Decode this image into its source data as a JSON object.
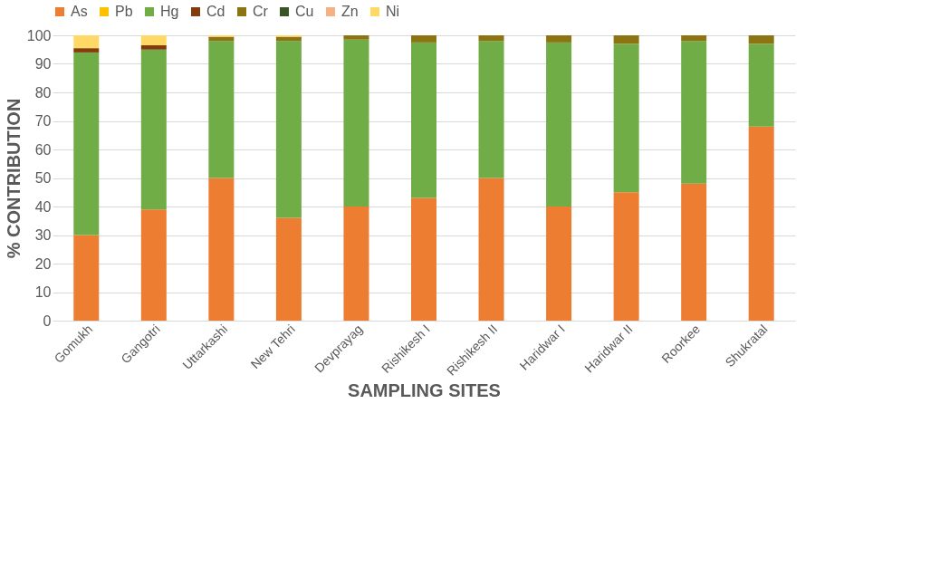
{
  "chart_data": {
    "type": "bar",
    "stacked": true,
    "xlabel": "SAMPLING SITES",
    "ylabel": "% CONTRIBUTION",
    "categories": [
      "Gomukh",
      "Gangotri",
      "Uttarkashi",
      "New Tehri",
      "Devprayag",
      "Rishikesh I",
      "Rishikesh II",
      "Haridwar I",
      "Haridwar II",
      "Roorkee",
      "Shukratal"
    ],
    "series": [
      {
        "name": "As",
        "color": "#ed7d31",
        "values": [
          30,
          39,
          50,
          36,
          40,
          43,
          50,
          40,
          45,
          48,
          68
        ]
      },
      {
        "name": "Pb",
        "color": "#ffc000",
        "values": [
          0,
          0,
          0,
          0,
          0,
          0,
          0,
          0,
          0,
          0,
          0
        ]
      },
      {
        "name": "Hg",
        "color": "#70ad47",
        "values": [
          64,
          56,
          48,
          62,
          58.5,
          54.5,
          48,
          57.5,
          52,
          50,
          29
        ]
      },
      {
        "name": "Cd",
        "color": "#843c0c",
        "values": [
          1.5,
          1.5,
          0,
          0,
          0,
          0,
          0,
          0,
          0,
          0,
          0
        ]
      },
      {
        "name": "Cr",
        "color": "#8c7412",
        "values": [
          0,
          0,
          1.5,
          1.5,
          1.5,
          2.5,
          2,
          2.5,
          3,
          2,
          3
        ]
      },
      {
        "name": "Cu",
        "color": "#375623",
        "values": [
          0,
          0,
          0,
          0,
          0,
          0,
          0,
          0,
          0,
          0,
          0
        ]
      },
      {
        "name": "Zn",
        "color": "#f4b183",
        "values": [
          0,
          0,
          0,
          0,
          0,
          0,
          0,
          0,
          0,
          0,
          0
        ]
      },
      {
        "name": "Ni",
        "color": "#ffd966",
        "values": [
          4.5,
          3.5,
          0.5,
          0.5,
          0,
          0,
          0,
          0,
          0,
          0,
          0
        ]
      }
    ],
    "ylim": [
      0,
      100
    ],
    "yticks": [
      0,
      10,
      20,
      30,
      40,
      50,
      60,
      70,
      80,
      90,
      100
    ],
    "grid": "y",
    "legend": "top"
  }
}
